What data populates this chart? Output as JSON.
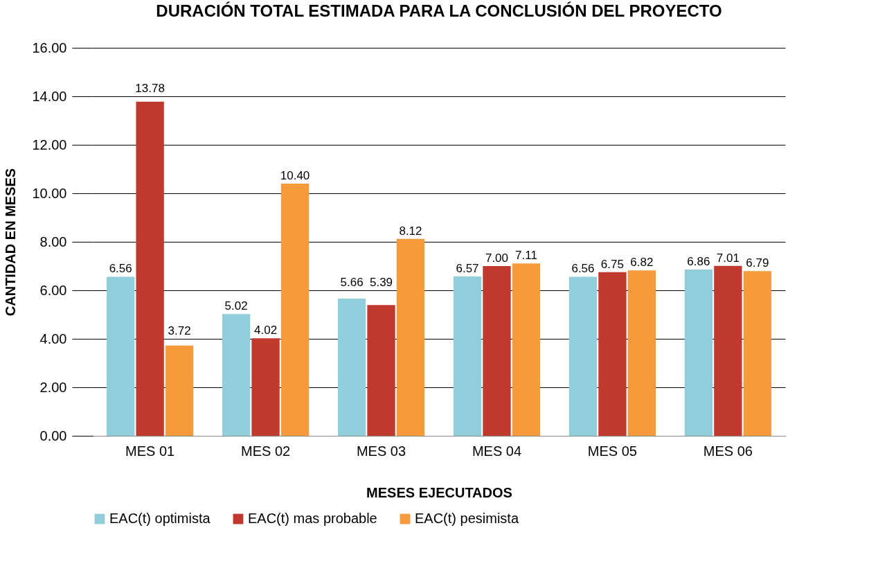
{
  "chart_data": {
    "type": "bar",
    "title": "DURACIÓN TOTAL ESTIMADA PARA LA CONCLUSIÓN DEL PROYECTO",
    "xlabel": "MESES  EJECUTADOS",
    "ylabel": "CANTIDAD   EN  MESES",
    "categories": [
      "MES 01",
      "MES 02",
      "MES 03",
      "MES 04",
      "MES 05",
      "MES 06"
    ],
    "series": [
      {
        "name": "EAC(t) optimista",
        "color": "#92cddc",
        "values": [
          6.56,
          5.02,
          5.66,
          6.57,
          6.56,
          6.86
        ],
        "value_labels": [
          "6.56",
          "5.02",
          "5.66",
          "6.57",
          "6.56",
          "6.86"
        ]
      },
      {
        "name": "EAC(t) mas probable",
        "color": "#c0392f",
        "values": [
          13.78,
          4.02,
          5.39,
          7.0,
          6.75,
          7.01
        ],
        "value_labels": [
          "13.78",
          "4.02",
          "5.39",
          "7.00",
          "6.75",
          "7.01"
        ]
      },
      {
        "name": "EAC(t) pesimista",
        "color": "#f79a3b",
        "values": [
          3.72,
          10.4,
          8.12,
          7.11,
          6.82,
          6.79
        ],
        "value_labels": [
          "3.72",
          "10.40",
          "8.12",
          "7.11",
          "6.82",
          "6.79"
        ]
      }
    ],
    "ylim": [
      0,
      16
    ],
    "yticks": [
      {
        "value": 0,
        "label": "0.00"
      },
      {
        "value": 2,
        "label": "2.00"
      },
      {
        "value": 4,
        "label": "4.00"
      },
      {
        "value": 6,
        "label": "6.00"
      },
      {
        "value": 8,
        "label": "8.00"
      },
      {
        "value": 10,
        "label": "10.00"
      },
      {
        "value": 12,
        "label": "12.00"
      },
      {
        "value": 14,
        "label": "14.00"
      },
      {
        "value": 16,
        "label": "16.00"
      }
    ],
    "grid": "y",
    "legend": "bottom"
  }
}
